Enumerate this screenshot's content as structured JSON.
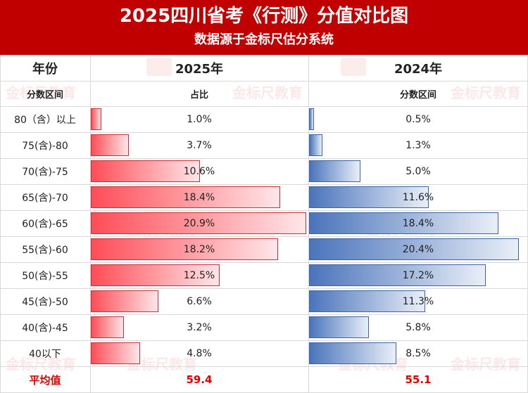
{
  "header": {
    "title": "2025四川省考《行测》分值对比图",
    "subtitle": "数据源于金标尺估分系统"
  },
  "table": {
    "col_year_label": "年份",
    "col_2025_label": "2025年",
    "col_2024_label": "2024年",
    "sub_range_label": "分数区间",
    "sub_2025_label": "占比",
    "sub_2024_label": "分数区间",
    "avg_label": "平均值",
    "avg_2025": "59.4",
    "avg_2024": "55.1"
  },
  "watermark": "金标尺教育",
  "colors": {
    "header_bg": "#c00000",
    "bar_2025": "#ff4d57",
    "bar_2024": "#4a74bb",
    "avg_text": "#e00000"
  },
  "chart_data": {
    "type": "bar",
    "title": "2025四川省考《行测》分值对比图",
    "subtitle": "数据源于金标尺估分系统",
    "categories": [
      "80（含）以上",
      "75(含)-80",
      "70(含)-75",
      "65(含)-70",
      "60(含)-65",
      "55(含)-60",
      "50(含)-55",
      "45(含)-50",
      "40(含)-45",
      "40以下"
    ],
    "series": [
      {
        "name": "2025年",
        "values": [
          1.0,
          3.7,
          10.6,
          18.4,
          20.9,
          18.2,
          12.5,
          6.6,
          3.2,
          4.8
        ],
        "labels": [
          "1.0%",
          "3.7%",
          "10.6%",
          "18.4%",
          "20.9%",
          "18.2%",
          "12.5%",
          "6.6%",
          "3.2%",
          "4.8%"
        ]
      },
      {
        "name": "2024年",
        "values": [
          0.5,
          1.3,
          5.0,
          11.6,
          18.4,
          20.4,
          17.2,
          11.3,
          5.8,
          8.5
        ],
        "labels": [
          "0.5%",
          "1.3%",
          "5.0%",
          "11.6%",
          "18.4%",
          "20.4%",
          "17.2%",
          "11.3%",
          "5.8%",
          "8.5%"
        ]
      }
    ],
    "orientation": "horizontal"
  }
}
